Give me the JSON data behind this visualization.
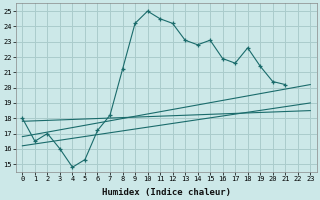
{
  "xlabel": "Humidex (Indice chaleur)",
  "bg_color": "#cce8e8",
  "grid_color": "#aacccc",
  "line_color": "#1a6b6b",
  "xlim": [
    -0.5,
    23.5
  ],
  "ylim": [
    14.5,
    25.5
  ],
  "yticks": [
    15,
    16,
    17,
    18,
    19,
    20,
    21,
    22,
    23,
    24,
    25
  ],
  "xticks": [
    0,
    1,
    2,
    3,
    4,
    5,
    6,
    7,
    8,
    9,
    10,
    11,
    12,
    13,
    14,
    15,
    16,
    17,
    18,
    19,
    20,
    21,
    22,
    23
  ],
  "series1_x": [
    0,
    1,
    2,
    3,
    4,
    5,
    6,
    7,
    8,
    9,
    10,
    11,
    12,
    13,
    14,
    15,
    16,
    17,
    18,
    19,
    20,
    21
  ],
  "series1_y": [
    18.0,
    16.5,
    17.0,
    16.0,
    14.8,
    15.3,
    17.2,
    18.2,
    21.2,
    24.2,
    25.0,
    24.5,
    24.2,
    23.1,
    22.8,
    23.1,
    21.9,
    21.6,
    22.6,
    21.4,
    20.4,
    20.2
  ],
  "series2_x": [
    0,
    23
  ],
  "series2_y": [
    17.8,
    18.5
  ],
  "series3_x": [
    0,
    23
  ],
  "series3_y": [
    16.8,
    20.2
  ],
  "series4_x": [
    0,
    23
  ],
  "series4_y": [
    16.2,
    19.0
  ]
}
